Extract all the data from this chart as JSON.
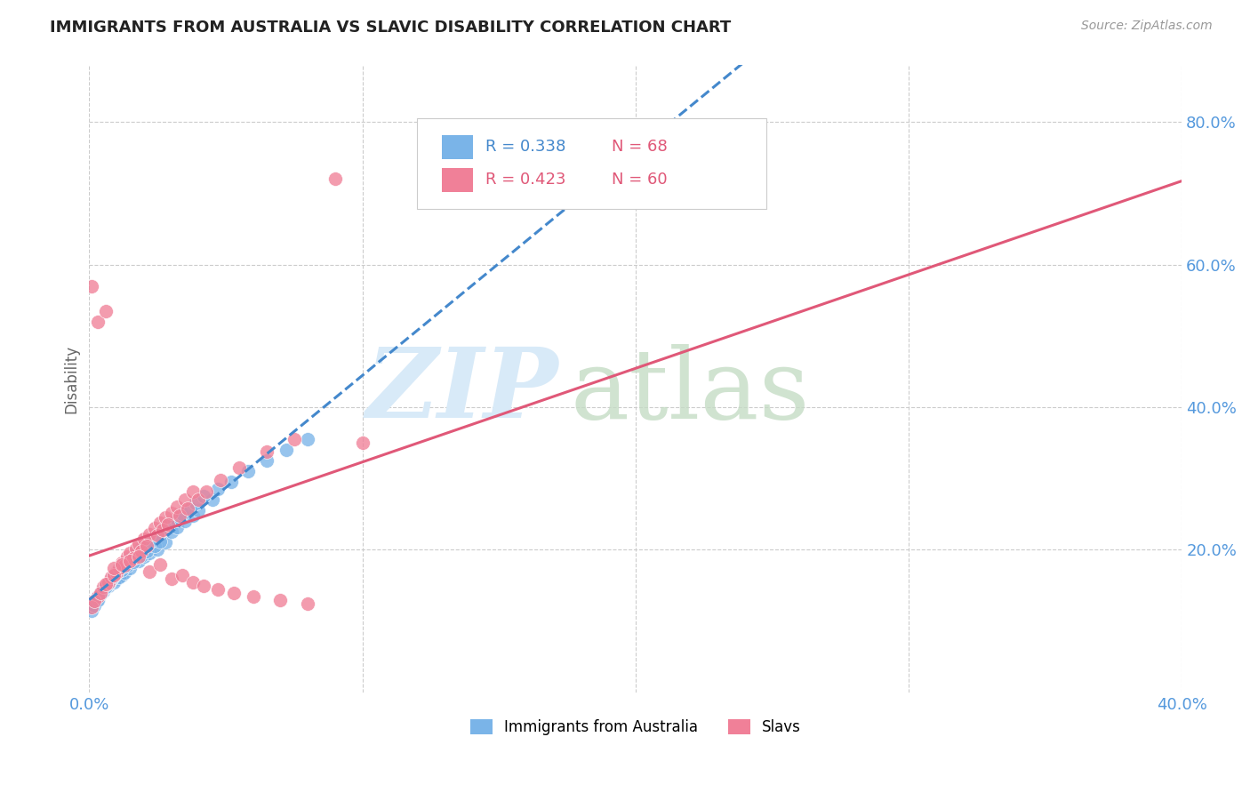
{
  "title": "IMMIGRANTS FROM AUSTRALIA VS SLAVIC DISABILITY CORRELATION CHART",
  "source": "Source: ZipAtlas.com",
  "ylabel": "Disability",
  "ytick_labels": [
    "20.0%",
    "40.0%",
    "60.0%",
    "80.0%"
  ],
  "ytick_values": [
    0.2,
    0.4,
    0.6,
    0.8
  ],
  "xlim": [
    0.0,
    0.4
  ],
  "ylim": [
    0.0,
    0.88
  ],
  "blue_R": "R = 0.338",
  "blue_N": "N = 68",
  "pink_R": "R = 0.423",
  "pink_N": "N = 60",
  "blue_color": "#7ab4e8",
  "pink_color": "#f08098",
  "blue_line_color": "#4488cc",
  "pink_line_color": "#e05878",
  "grid_color": "#cccccc",
  "title_color": "#222222",
  "axis_label_color": "#5599dd",
  "legend_label_blue": "Immigrants from Australia",
  "legend_label_pink": "Slavs",
  "blue_scatter_x": [
    0.005,
    0.008,
    0.003,
    0.002,
    0.01,
    0.012,
    0.007,
    0.005,
    0.003,
    0.004,
    0.006,
    0.009,
    0.011,
    0.013,
    0.015,
    0.018,
    0.02,
    0.022,
    0.025,
    0.028,
    0.001,
    0.002,
    0.003,
    0.005,
    0.007,
    0.008,
    0.009,
    0.012,
    0.014,
    0.016,
    0.019,
    0.021,
    0.024,
    0.026,
    0.03,
    0.032,
    0.035,
    0.038,
    0.04,
    0.045,
    0.001,
    0.002,
    0.003,
    0.004,
    0.006,
    0.007,
    0.008,
    0.01,
    0.011,
    0.013,
    0.015,
    0.017,
    0.019,
    0.022,
    0.025,
    0.027,
    0.029,
    0.032,
    0.034,
    0.037,
    0.039,
    0.042,
    0.047,
    0.052,
    0.058,
    0.065,
    0.072,
    0.08
  ],
  "blue_scatter_y": [
    0.145,
    0.155,
    0.13,
    0.125,
    0.16,
    0.165,
    0.15,
    0.142,
    0.135,
    0.14,
    0.148,
    0.155,
    0.162,
    0.168,
    0.175,
    0.185,
    0.19,
    0.195,
    0.2,
    0.21,
    0.12,
    0.128,
    0.132,
    0.145,
    0.152,
    0.158,
    0.163,
    0.172,
    0.178,
    0.183,
    0.192,
    0.198,
    0.205,
    0.212,
    0.225,
    0.232,
    0.24,
    0.248,
    0.255,
    0.27,
    0.115,
    0.122,
    0.13,
    0.138,
    0.148,
    0.153,
    0.16,
    0.168,
    0.174,
    0.182,
    0.188,
    0.196,
    0.203,
    0.21,
    0.222,
    0.228,
    0.235,
    0.242,
    0.25,
    0.258,
    0.265,
    0.275,
    0.285,
    0.295,
    0.31,
    0.325,
    0.34,
    0.355
  ],
  "pink_scatter_x": [
    0.003,
    0.005,
    0.007,
    0.008,
    0.01,
    0.011,
    0.012,
    0.014,
    0.015,
    0.017,
    0.018,
    0.02,
    0.022,
    0.024,
    0.026,
    0.028,
    0.03,
    0.032,
    0.035,
    0.038,
    0.001,
    0.002,
    0.004,
    0.006,
    0.009,
    0.013,
    0.016,
    0.019,
    0.021,
    0.025,
    0.027,
    0.029,
    0.033,
    0.036,
    0.04,
    0.043,
    0.048,
    0.055,
    0.065,
    0.075,
    0.001,
    0.003,
    0.006,
    0.009,
    0.012,
    0.015,
    0.018,
    0.022,
    0.026,
    0.03,
    0.034,
    0.038,
    0.042,
    0.047,
    0.053,
    0.06,
    0.07,
    0.08,
    0.09,
    0.1
  ],
  "pink_scatter_y": [
    0.135,
    0.148,
    0.155,
    0.162,
    0.168,
    0.175,
    0.182,
    0.19,
    0.195,
    0.202,
    0.208,
    0.215,
    0.222,
    0.23,
    0.238,
    0.245,
    0.252,
    0.26,
    0.27,
    0.282,
    0.12,
    0.128,
    0.14,
    0.152,
    0.165,
    0.178,
    0.188,
    0.198,
    0.205,
    0.22,
    0.228,
    0.235,
    0.248,
    0.258,
    0.27,
    0.282,
    0.298,
    0.315,
    0.338,
    0.355,
    0.57,
    0.52,
    0.535,
    0.175,
    0.18,
    0.185,
    0.19,
    0.17,
    0.18,
    0.16,
    0.165,
    0.155,
    0.15,
    0.145,
    0.14,
    0.135,
    0.13,
    0.125,
    0.72,
    0.35
  ]
}
